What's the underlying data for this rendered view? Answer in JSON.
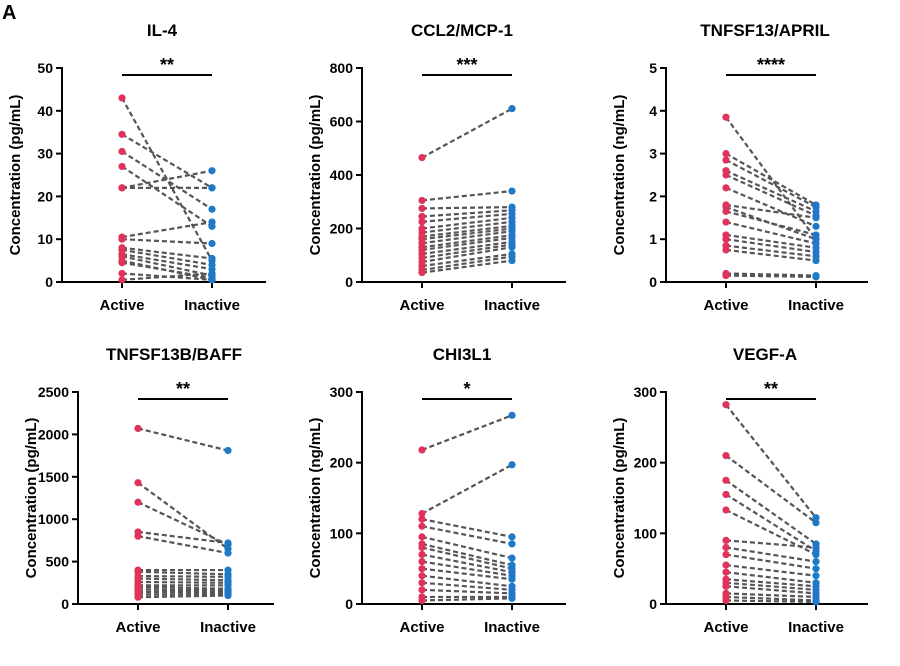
{
  "figure": {
    "panel_letter": "A",
    "colors": {
      "active": "#e0325a",
      "inactive": "#1f78c8",
      "pair_line": "#555555",
      "axis": "#000000"
    }
  },
  "chart_data": [
    {
      "type": "scatter",
      "title": "IL-4",
      "ylabel": "Concentration (pg/mL)",
      "ylim": [
        0,
        50
      ],
      "yticks": [
        0,
        10,
        20,
        30,
        40,
        50
      ],
      "categories": [
        "Active",
        "Inactive"
      ],
      "significance": "**",
      "pairs": [
        [
          43,
          5
        ],
        [
          34.5,
          22
        ],
        [
          30.5,
          17
        ],
        [
          27,
          13
        ],
        [
          22,
          26
        ],
        [
          22,
          22
        ],
        [
          10.5,
          14
        ],
        [
          10,
          9
        ],
        [
          8,
          5.5
        ],
        [
          7.5,
          4
        ],
        [
          6.5,
          3
        ],
        [
          6,
          1.5
        ],
        [
          5,
          0.5
        ],
        [
          4.5,
          1
        ],
        [
          2,
          0.5
        ],
        [
          0.5,
          2
        ]
      ]
    },
    {
      "type": "scatter",
      "title": "CCL2/MCP-1",
      "ylabel": "Concentration (pg/mL)",
      "ylim": [
        0,
        800
      ],
      "yticks": [
        0,
        200,
        400,
        600,
        800
      ],
      "categories": [
        "Active",
        "Inactive"
      ],
      "significance": "***",
      "pairs": [
        [
          465,
          648
        ],
        [
          305,
          340
        ],
        [
          275,
          280
        ],
        [
          245,
          268
        ],
        [
          225,
          255
        ],
        [
          200,
          240
        ],
        [
          185,
          225
        ],
        [
          170,
          210
        ],
        [
          160,
          200
        ],
        [
          145,
          190
        ],
        [
          130,
          175
        ],
        [
          120,
          165
        ],
        [
          105,
          150
        ],
        [
          90,
          140
        ],
        [
          75,
          130
        ],
        [
          60,
          105
        ],
        [
          45,
          95
        ],
        [
          35,
          80
        ]
      ]
    },
    {
      "type": "scatter",
      "title": "TNFSF13/APRIL",
      "ylabel": "Concentration (ng/mL)",
      "ylim": [
        0,
        5
      ],
      "yticks": [
        0,
        1,
        2,
        3,
        4,
        5
      ],
      "categories": [
        "Active",
        "Inactive"
      ],
      "significance": "****",
      "pairs": [
        [
          3.85,
          1.0
        ],
        [
          3.0,
          1.8
        ],
        [
          2.85,
          1.75
        ],
        [
          2.6,
          1.65
        ],
        [
          2.5,
          1.55
        ],
        [
          2.2,
          1.3
        ],
        [
          1.8,
          1.5
        ],
        [
          1.75,
          1.0
        ],
        [
          1.65,
          1.1
        ],
        [
          1.4,
          0.9
        ],
        [
          1.1,
          0.8
        ],
        [
          1.0,
          0.7
        ],
        [
          0.85,
          0.6
        ],
        [
          0.75,
          0.5
        ],
        [
          0.2,
          0.15
        ],
        [
          0.15,
          0.12
        ]
      ]
    },
    {
      "type": "scatter",
      "title": "TNFSF13B/BAFF",
      "ylabel": "Concentration (pg/mL)",
      "ylim": [
        0,
        2500
      ],
      "yticks": [
        0,
        500,
        1000,
        1500,
        2000,
        2500
      ],
      "categories": [
        "Active",
        "Inactive"
      ],
      "significance": "**",
      "pairs": [
        [
          2070,
          1810
        ],
        [
          1430,
          650
        ],
        [
          1200,
          700
        ],
        [
          850,
          720
        ],
        [
          800,
          600
        ],
        [
          400,
          400
        ],
        [
          380,
          350
        ],
        [
          330,
          320
        ],
        [
          300,
          280
        ],
        [
          260,
          250
        ],
        [
          220,
          220
        ],
        [
          200,
          180
        ],
        [
          170,
          160
        ],
        [
          140,
          140
        ],
        [
          110,
          120
        ],
        [
          80,
          100
        ]
      ]
    },
    {
      "type": "scatter",
      "title": "CHI3L1",
      "ylabel": "Concentration (ng/mL)",
      "ylim": [
        0,
        300
      ],
      "yticks": [
        0,
        100,
        200,
        300
      ],
      "categories": [
        "Active",
        "Inactive"
      ],
      "significance": "*",
      "pairs": [
        [
          218,
          267
        ],
        [
          128,
          197
        ],
        [
          120,
          95
        ],
        [
          110,
          85
        ],
        [
          95,
          65
        ],
        [
          85,
          55
        ],
        [
          80,
          50
        ],
        [
          70,
          45
        ],
        [
          60,
          40
        ],
        [
          50,
          35
        ],
        [
          40,
          25
        ],
        [
          30,
          20
        ],
        [
          20,
          15
        ],
        [
          10,
          10
        ],
        [
          5,
          8
        ]
      ]
    },
    {
      "type": "scatter",
      "title": "VEGF-A",
      "ylabel": "Concentration (pg/mL)",
      "ylim": [
        0,
        300
      ],
      "yticks": [
        0,
        100,
        200,
        300
      ],
      "categories": [
        "Active",
        "Inactive"
      ],
      "significance": "**",
      "pairs": [
        [
          282,
          122
        ],
        [
          210,
          115
        ],
        [
          175,
          85
        ],
        [
          155,
          75
        ],
        [
          133,
          70
        ],
        [
          90,
          80
        ],
        [
          80,
          60
        ],
        [
          70,
          50
        ],
        [
          55,
          40
        ],
        [
          45,
          30
        ],
        [
          35,
          25
        ],
        [
          30,
          20
        ],
        [
          25,
          15
        ],
        [
          15,
          10
        ],
        [
          10,
          5
        ],
        [
          5,
          3
        ]
      ]
    }
  ]
}
